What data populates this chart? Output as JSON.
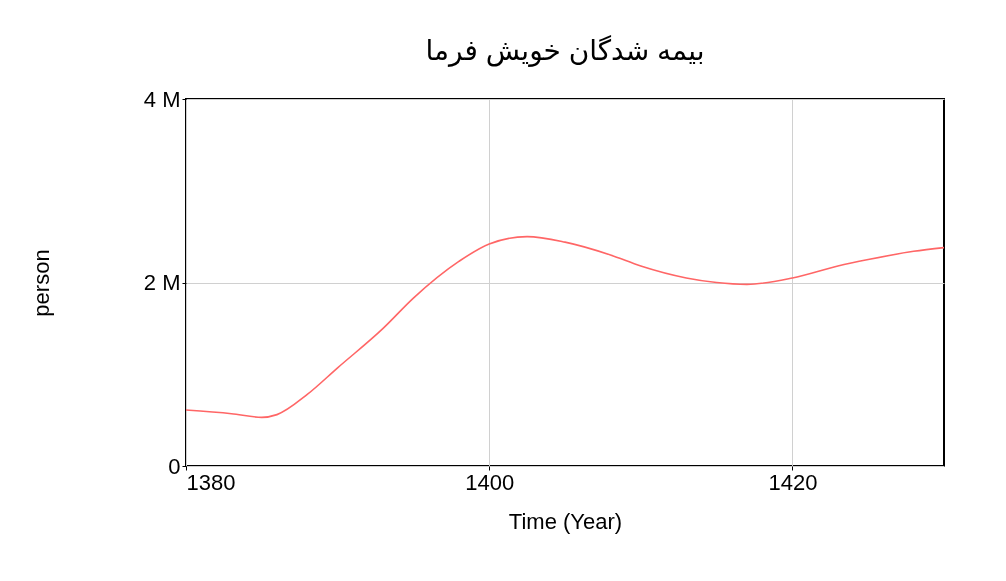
{
  "chart_data": {
    "type": "line",
    "title": "بیمه شدگان خویش فرما",
    "xlabel": "Time (Year)",
    "ylabel": "person",
    "x": [
      1380,
      1383,
      1385,
      1386,
      1388,
      1390,
      1393,
      1395,
      1398,
      1400,
      1402.5,
      1405,
      1408,
      1410,
      1413,
      1415,
      1417,
      1420,
      1423,
      1425,
      1428,
      1430
    ],
    "series": [
      {
        "color": "#ff6666",
        "values": [
          610000,
          570000,
          530000,
          560000,
          780000,
          1070000,
          1500000,
          1830000,
          2230000,
          2420000,
          2500000,
          2440000,
          2300000,
          2180000,
          2050000,
          2000000,
          1980000,
          2050000,
          2180000,
          2250000,
          2340000,
          2380000
        ]
      }
    ],
    "xlim": [
      1380,
      1430
    ],
    "xticks": [
      1380,
      1400,
      1420
    ],
    "ylim": [
      0,
      4000000
    ],
    "yticks": [
      0,
      {
        "value": 2000000,
        "label": "2 M"
      },
      {
        "value": 4000000,
        "label": "4 M"
      }
    ],
    "grid": true
  }
}
